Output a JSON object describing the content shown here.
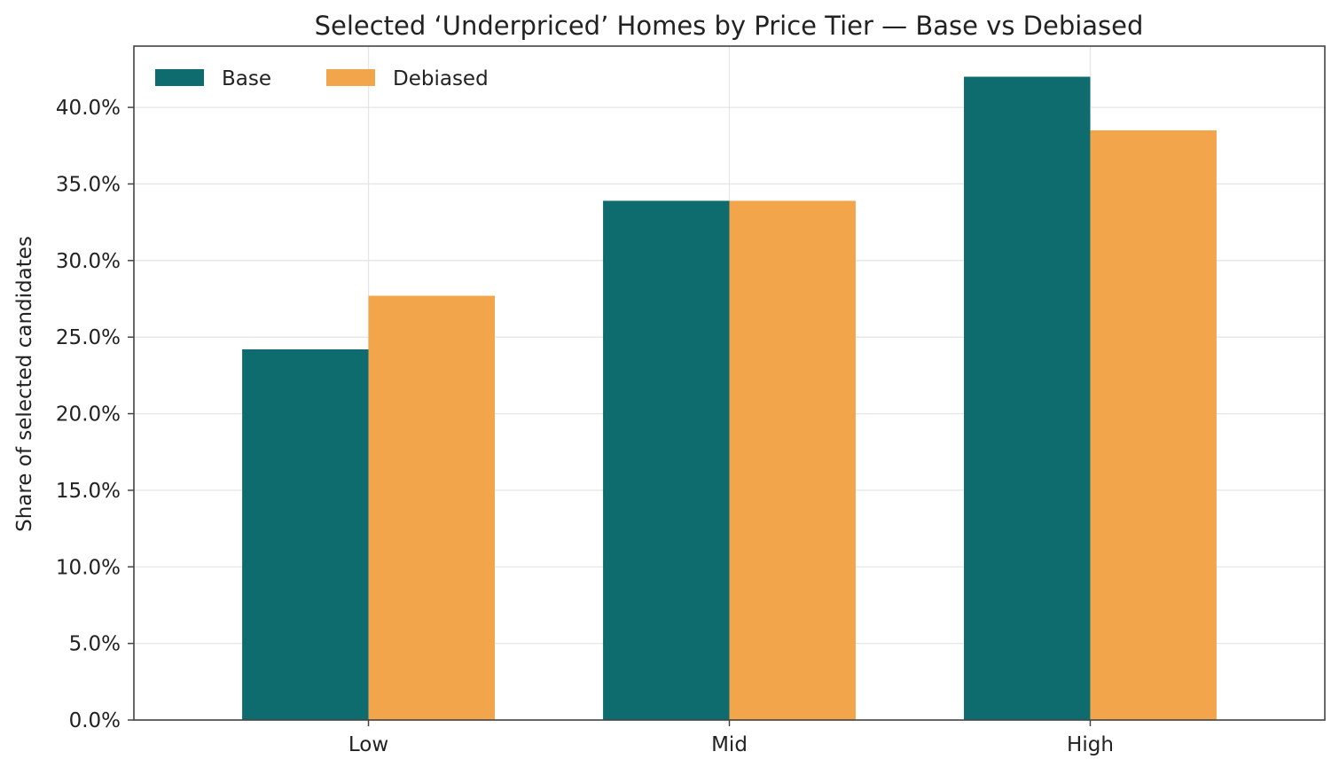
{
  "chart_data": {
    "type": "bar",
    "title": "Selected ‘Underpriced’ Homes by Price Tier — Base vs Debiased",
    "xlabel": "",
    "ylabel": "Share of selected candidates",
    "categories": [
      "Low",
      "Mid",
      "High"
    ],
    "series": [
      {
        "name": "Base",
        "color": "#0e6b6e",
        "values": [
          24.2,
          33.9,
          42.0
        ]
      },
      {
        "name": "Debiased",
        "color": "#f2a54a",
        "values": [
          27.7,
          33.9,
          38.5
        ]
      }
    ],
    "ylim": [
      0,
      44
    ],
    "yticks": [
      0,
      5,
      10,
      15,
      20,
      25,
      30,
      35,
      40
    ],
    "ytick_labels": [
      "0.0%",
      "5.0%",
      "10.0%",
      "15.0%",
      "20.0%",
      "25.0%",
      "30.0%",
      "35.0%",
      "40.0%"
    ],
    "grid": true,
    "legend_position": "top-left",
    "legend_columns": 2
  }
}
